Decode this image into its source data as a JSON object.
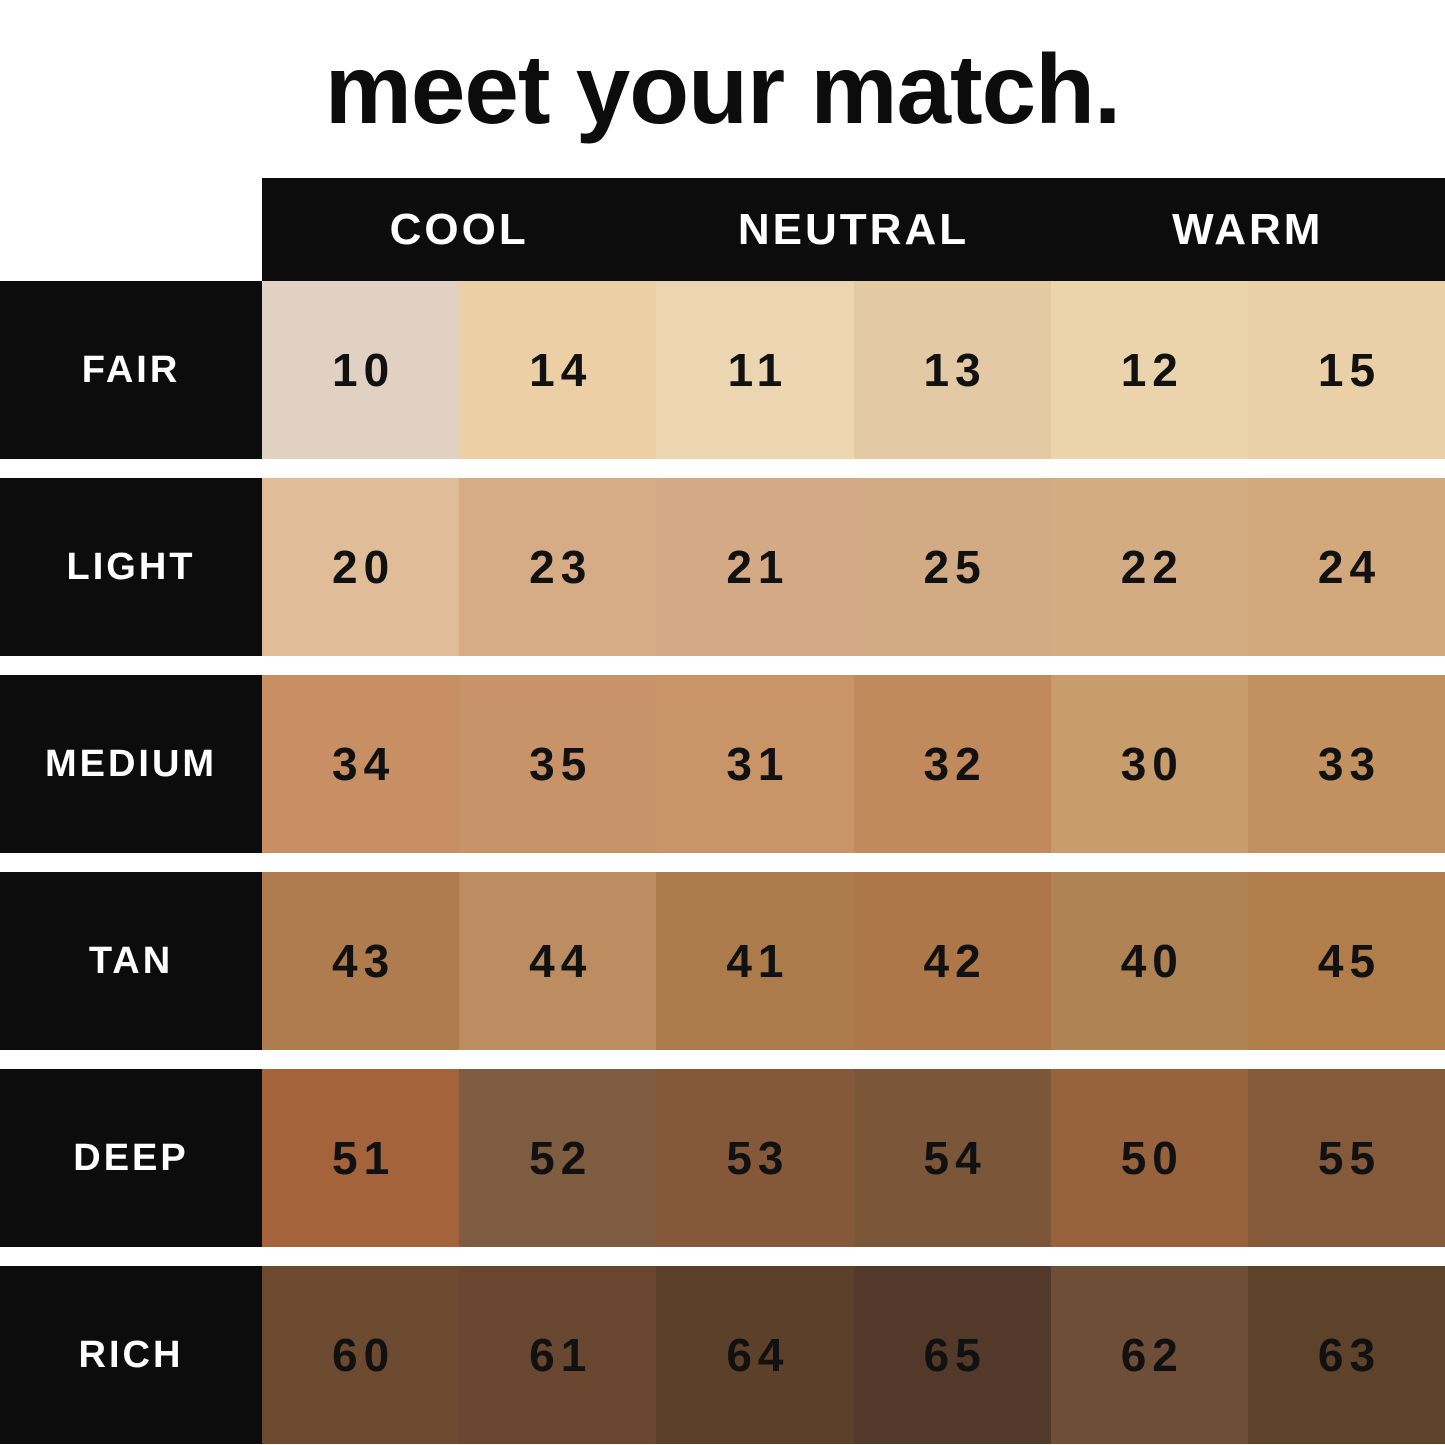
{
  "title": "meet your match.",
  "colors": {
    "black": "#0c0c0c",
    "white": "#ffffff",
    "number_text": "#111111"
  },
  "chart_data": {
    "type": "table",
    "title": "meet your match.",
    "column_groups": [
      "COOL",
      "NEUTRAL",
      "WARM"
    ],
    "columns_per_group": 2,
    "row_labels": [
      "FAIR",
      "LIGHT",
      "MEDIUM",
      "TAN",
      "DEEP",
      "RICH"
    ],
    "rows": [
      {
        "label": "FAIR",
        "shades": [
          {
            "number": "10",
            "color": "#e0d1c3"
          },
          {
            "number": "14",
            "color": "#eccfa5"
          },
          {
            "number": "11",
            "color": "#ecd5b1"
          },
          {
            "number": "13",
            "color": "#e3caa5"
          },
          {
            "number": "12",
            "color": "#ebd4ab"
          },
          {
            "number": "15",
            "color": "#e9d0a7"
          }
        ]
      },
      {
        "label": "LIGHT",
        "shades": [
          {
            "number": "20",
            "color": "#e0bd98"
          },
          {
            "number": "23",
            "color": "#d5ac86"
          },
          {
            "number": "21",
            "color": "#d3aa85"
          },
          {
            "number": "25",
            "color": "#d2aa83"
          },
          {
            "number": "22",
            "color": "#d4ac83"
          },
          {
            "number": "24",
            "color": "#d2a87c"
          }
        ]
      },
      {
        "label": "MEDIUM",
        "shades": [
          {
            "number": "34",
            "color": "#c88f64"
          },
          {
            "number": "35",
            "color": "#c99369"
          },
          {
            "number": "31",
            "color": "#c99467"
          },
          {
            "number": "32",
            "color": "#c08a5c"
          },
          {
            "number": "30",
            "color": "#c89c6b"
          },
          {
            "number": "33",
            "color": "#c29160"
          }
        ]
      },
      {
        "label": "TAN",
        "shades": [
          {
            "number": "43",
            "color": "#ae7c4e"
          },
          {
            "number": "44",
            "color": "#bc8d60"
          },
          {
            "number": "41",
            "color": "#ab7b4b"
          },
          {
            "number": "42",
            "color": "#ae774a"
          },
          {
            "number": "40",
            "color": "#ae8253"
          },
          {
            "number": "45",
            "color": "#b17d4b"
          }
        ]
      },
      {
        "label": "DEEP",
        "shades": [
          {
            "number": "51",
            "color": "#a4633a"
          },
          {
            "number": "52",
            "color": "#7d5c40"
          },
          {
            "number": "53",
            "color": "#86583a"
          },
          {
            "number": "54",
            "color": "#7b5639"
          },
          {
            "number": "50",
            "color": "#97623c"
          },
          {
            "number": "55",
            "color": "#845a3a"
          }
        ]
      },
      {
        "label": "RICH",
        "shades": [
          {
            "number": "60",
            "color": "#6c4a30"
          },
          {
            "number": "61",
            "color": "#684630"
          },
          {
            "number": "64",
            "color": "#5d402a"
          },
          {
            "number": "65",
            "color": "#533929"
          },
          {
            "number": "62",
            "color": "#6f4e37"
          },
          {
            "number": "63",
            "color": "#5f422a"
          }
        ]
      }
    ]
  }
}
